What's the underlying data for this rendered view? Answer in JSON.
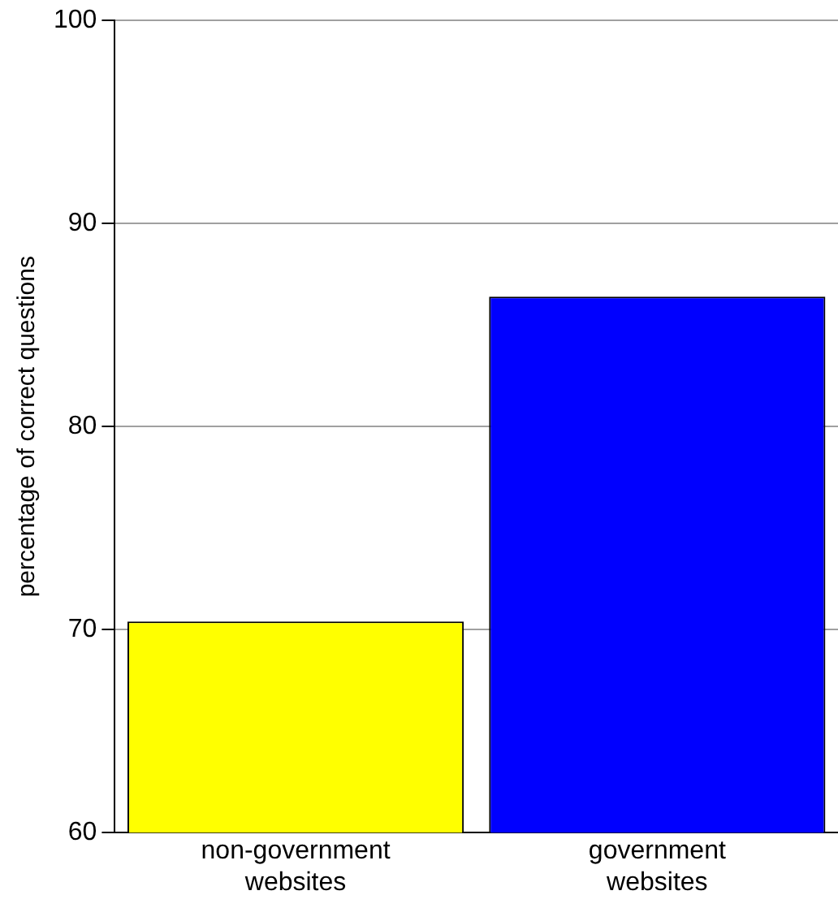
{
  "chart_data": {
    "type": "bar",
    "ylabel": "percentage of correct questions",
    "categories": [
      "non-government websites",
      "government websites"
    ],
    "colors": [
      "#ffff00",
      "#0000ff"
    ],
    "values": [
      70.4,
      86.4
    ],
    "ylim": [
      60,
      100
    ],
    "yticks": [
      60,
      70,
      80,
      90,
      100
    ],
    "grid": "y"
  }
}
